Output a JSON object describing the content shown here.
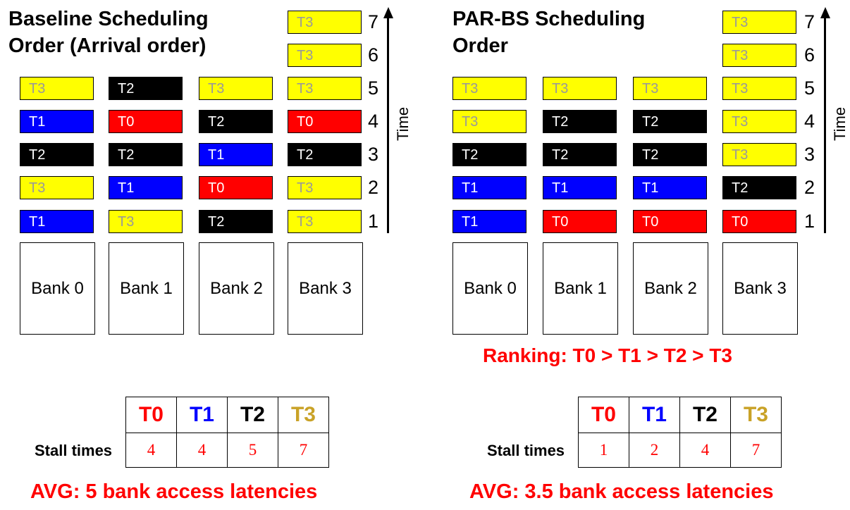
{
  "colors": {
    "T0": "#ff0000",
    "T1": "#0000ff",
    "T2": "#000000",
    "T3": "#ffff00"
  },
  "text_colors": {
    "T0": "#ff0000",
    "T1": "#0000ff",
    "T2": "#000000",
    "T3": "#c9a227"
  },
  "time_label": "Time",
  "time_ticks": [
    "1",
    "2",
    "3",
    "4",
    "5",
    "6",
    "7"
  ],
  "left": {
    "title": "Baseline Scheduling\nOrder (Arrival order)",
    "banks": [
      {
        "label": "Bank 0",
        "requests": [
          "T1",
          "T3",
          "T2",
          "T1",
          "T3"
        ]
      },
      {
        "label": "Bank 1",
        "requests": [
          "T3",
          "T1",
          "T2",
          "T0",
          "T2"
        ]
      },
      {
        "label": "Bank 2",
        "requests": [
          "T2",
          "T0",
          "T1",
          "T2",
          "T3"
        ]
      },
      {
        "label": "Bank 3",
        "requests": [
          "T3",
          "T3",
          "T2",
          "T0",
          "T3",
          "T3",
          "T3"
        ]
      }
    ],
    "stall_label": "Stall times",
    "headers": [
      "T0",
      "T1",
      "T2",
      "T3"
    ],
    "values": [
      "4",
      "4",
      "5",
      "7"
    ],
    "avg": "AVG: 5 bank access latencies"
  },
  "right": {
    "title": "PAR-BS Scheduling\nOrder",
    "ranking": "Ranking: T0 > T1 > T2 > T3",
    "banks": [
      {
        "label": "Bank 0",
        "requests": [
          "T1",
          "T1",
          "T2",
          "T3",
          "T3"
        ]
      },
      {
        "label": "Bank 1",
        "requests": [
          "T0",
          "T1",
          "T2",
          "T2",
          "T3"
        ]
      },
      {
        "label": "Bank 2",
        "requests": [
          "T0",
          "T1",
          "T2",
          "T2",
          "T3"
        ]
      },
      {
        "label": "Bank 3",
        "requests": [
          "T0",
          "T2",
          "T3",
          "T3",
          "T3",
          "T3",
          "T3"
        ]
      }
    ],
    "stall_label": "Stall times",
    "headers": [
      "T0",
      "T1",
      "T2",
      "T3"
    ],
    "values": [
      "1",
      "2",
      "4",
      "7"
    ],
    "avg": "AVG: 3.5 bank access latencies"
  }
}
